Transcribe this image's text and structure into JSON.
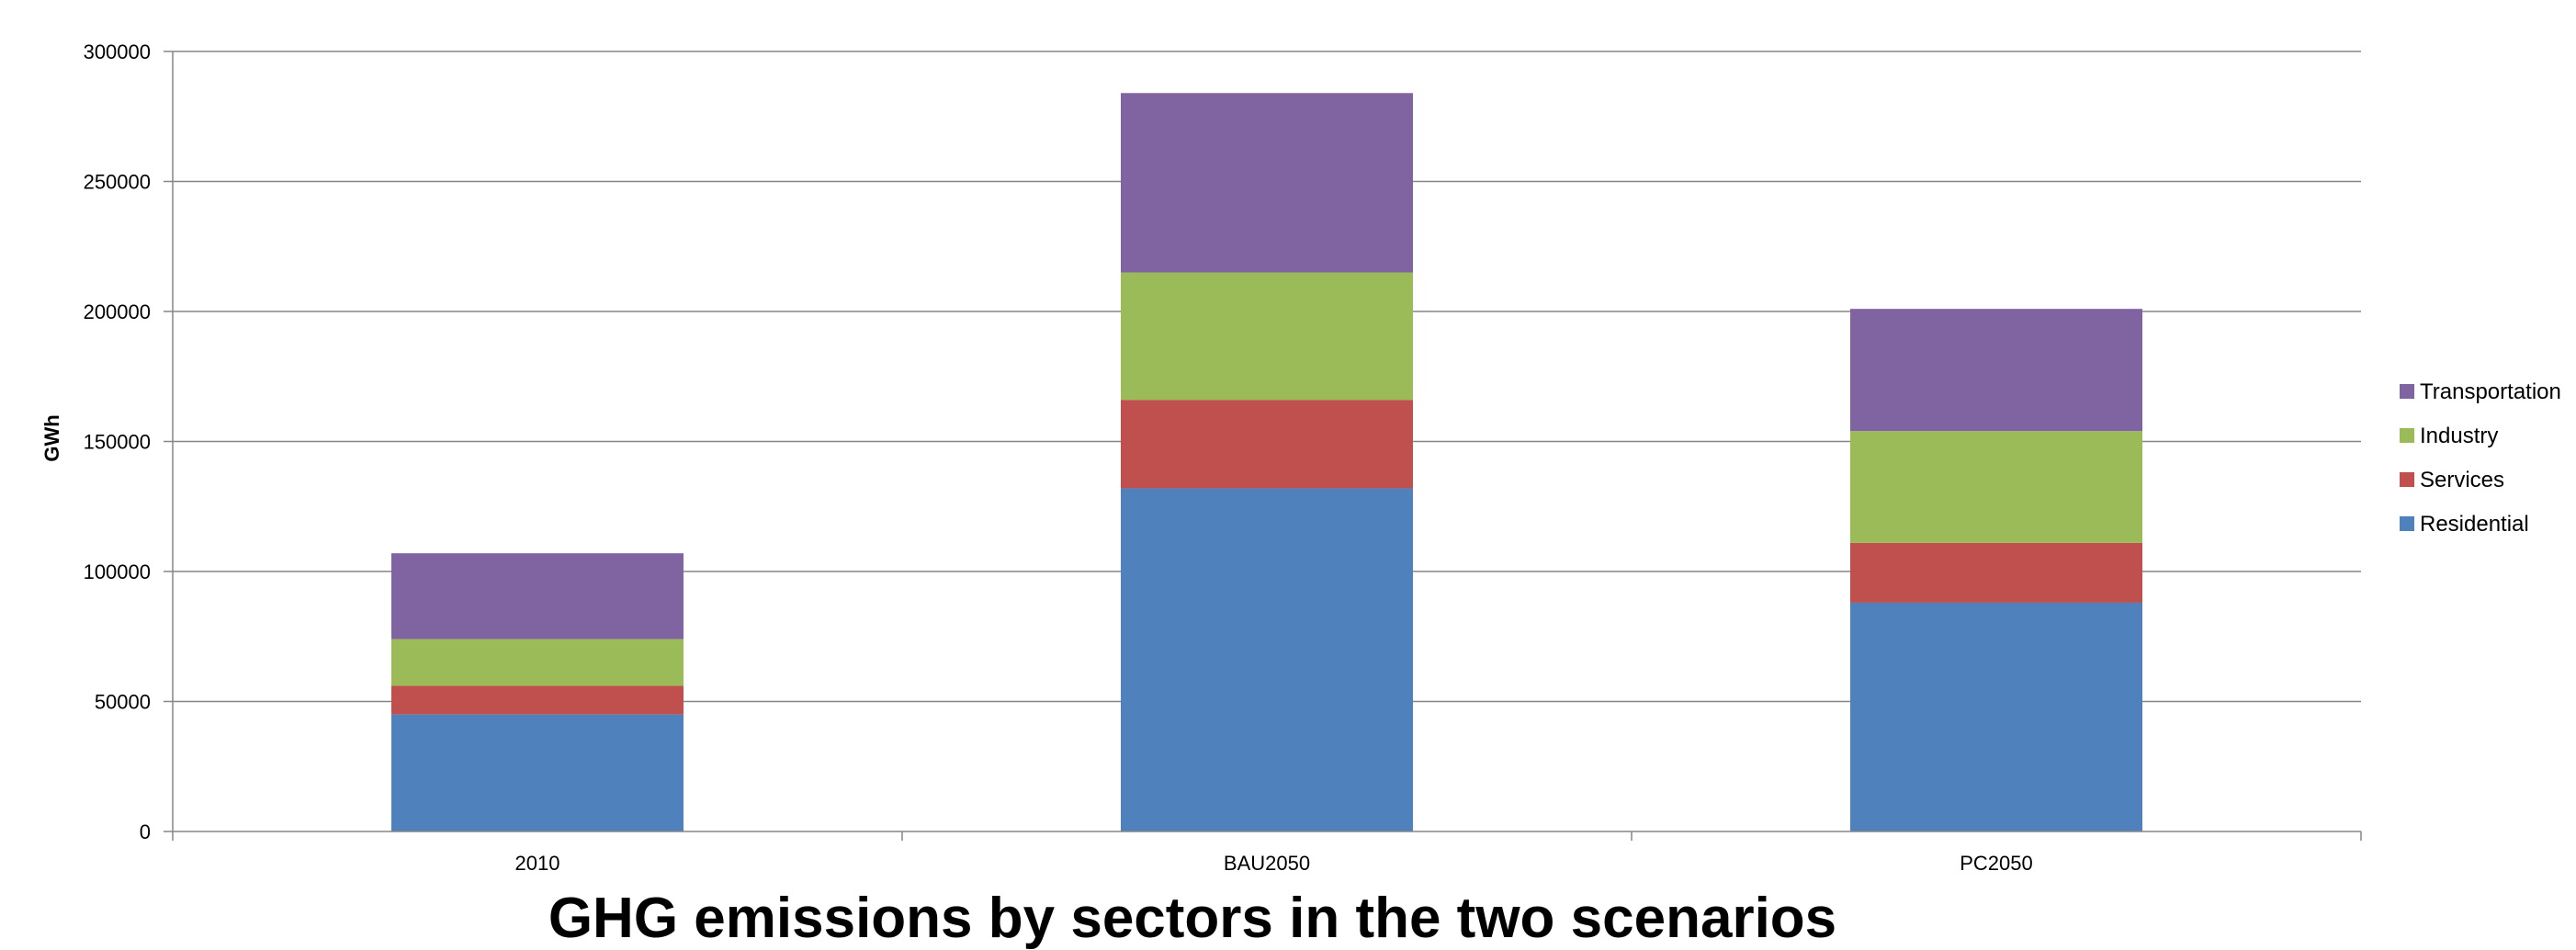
{
  "chart_data": {
    "type": "bar",
    "stacked": true,
    "title": "GHG emissions by sectors in the two scenarios",
    "xlabel": "",
    "ylabel": "GWh",
    "ylim": [
      0,
      300000
    ],
    "yticks": [
      "0",
      "50000",
      "100000",
      "150000",
      "200000",
      "250000",
      "300000"
    ],
    "grid": true,
    "legend_position": "right",
    "categories": [
      "2010",
      "BAU2050",
      "PC2050"
    ],
    "series": [
      {
        "name": "Residential",
        "color": "#4F81BD",
        "values": [
          45000,
          132000,
          88000
        ]
      },
      {
        "name": "Services",
        "color": "#C0504D",
        "values": [
          11000,
          34000,
          23000
        ]
      },
      {
        "name": "Industry",
        "color": "#9BBB59",
        "values": [
          18000,
          49000,
          43000
        ]
      },
      {
        "name": "Transportation",
        "color": "#8064A2",
        "values": [
          33000,
          69000,
          47000
        ]
      }
    ]
  }
}
